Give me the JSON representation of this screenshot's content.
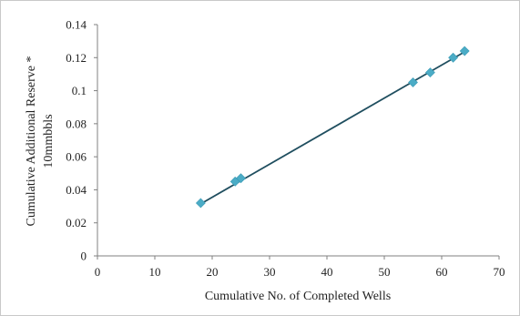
{
  "chart_data": {
    "type": "scatter",
    "title": "",
    "xlabel": "Cumulative  No. of Completed  Wells",
    "ylabel_line1": "Cumulative  Additional  Reserve *",
    "ylabel_line2": "10mmbbls",
    "xlim": [
      0,
      70
    ],
    "ylim": [
      0,
      0.14
    ],
    "x_ticks": [
      "0",
      "10",
      "20",
      "30",
      "40",
      "50",
      "60",
      "70"
    ],
    "y_ticks": [
      "0",
      "0.02",
      "0.04",
      "0.06",
      "0.08",
      "0.1",
      "0.12",
      "0.14"
    ],
    "grid": false,
    "legend": "none",
    "series": [
      {
        "x": [
          18,
          24,
          25,
          55,
          58,
          62,
          64
        ],
        "y": [
          0.032,
          0.045,
          0.047,
          0.105,
          0.111,
          0.12,
          0.124
        ]
      }
    ],
    "trendline": {
      "type": "linear",
      "x": [
        18,
        64
      ],
      "y": [
        0.0315,
        0.1235
      ]
    },
    "colors": {
      "marker": "#4bacc6",
      "line": "#1f4e5f",
      "axis": "#808080"
    }
  }
}
